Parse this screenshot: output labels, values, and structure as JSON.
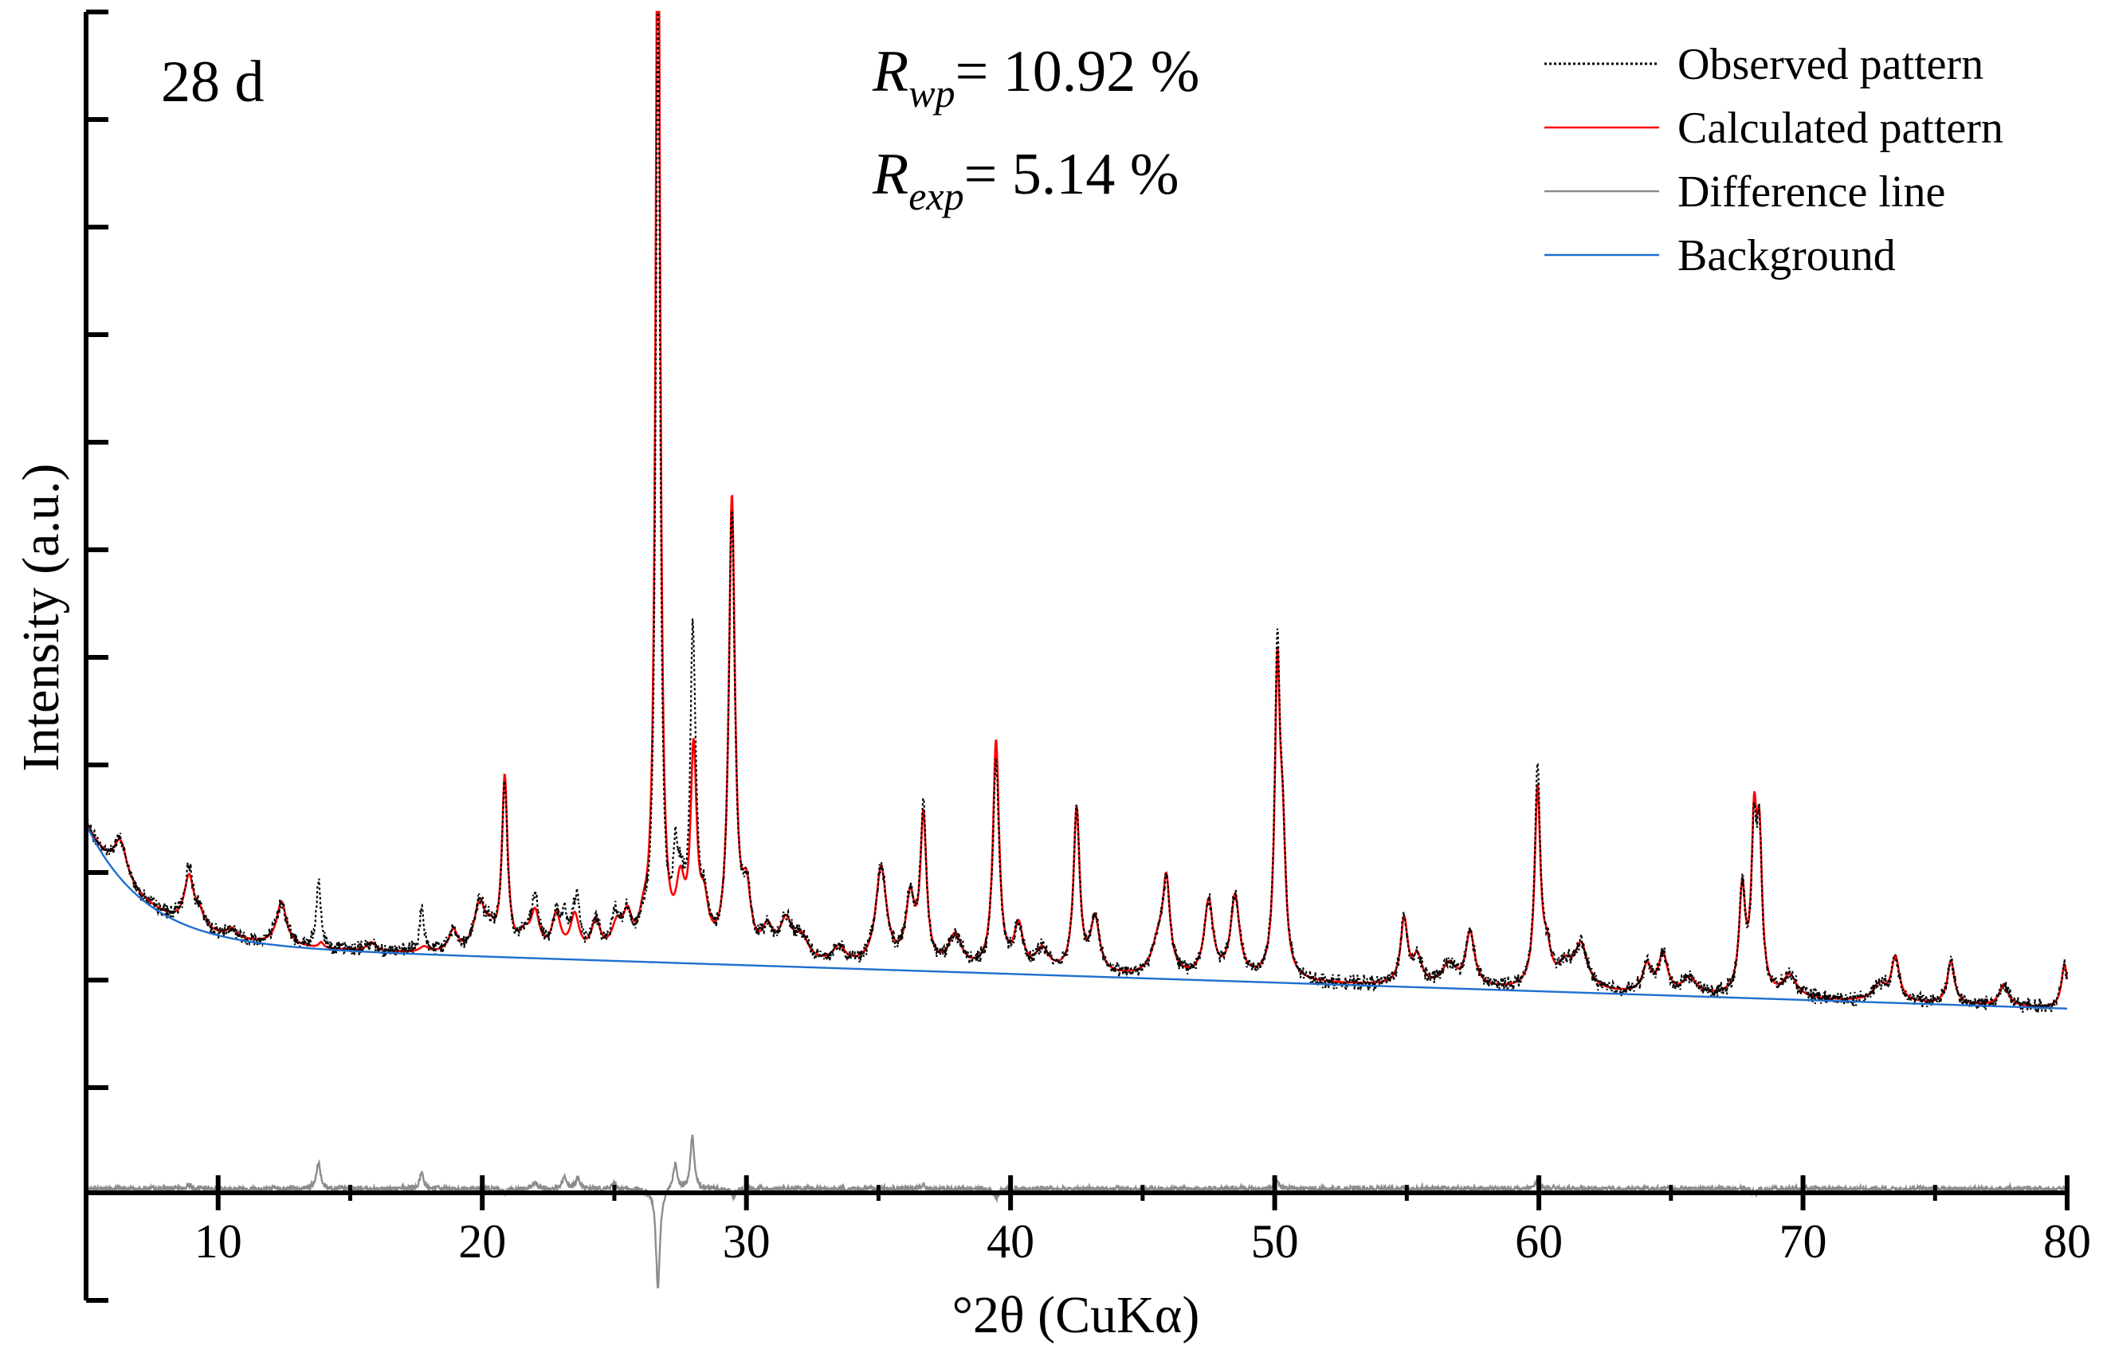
{
  "chart_data": {
    "type": "line",
    "title": "",
    "panel_label": "28 d",
    "stats": {
      "rwp": {
        "symbol": "R",
        "subscript": "wp",
        "text": "= 10.92 %"
      },
      "rexp": {
        "symbol": "R",
        "subscript": "exp",
        "text": "= 5.14 %"
      }
    },
    "xlabel": "°2θ (CuKα)",
    "ylabel": "Intensity (a.u.)",
    "xlim": [
      5,
      80
    ],
    "ylim": [
      -100,
      1000
    ],
    "x_ticks": [
      10,
      20,
      30,
      40,
      50,
      60,
      70,
      80
    ],
    "x_tick_labels": [
      "10",
      "20",
      "30",
      "40",
      "50",
      "60",
      "70",
      "80"
    ],
    "legend": [
      {
        "name": "Observed pattern",
        "color": "#000000",
        "style": "dotted"
      },
      {
        "name": "Calculated pattern",
        "color": "#ff0000",
        "style": "solid"
      },
      {
        "name": "Difference line",
        "color": "#8c8c8c",
        "style": "solid"
      },
      {
        "name": "Background",
        "color": "#1f6fd0",
        "style": "solid"
      }
    ],
    "background": {
      "a": 170,
      "b": 110,
      "k": 0.45,
      "c": 0.8
    },
    "peaks": [
      [
        6.3,
        35,
        0.3
      ],
      [
        8.9,
        45,
        0.22
      ],
      [
        9.3,
        12,
        0.2
      ],
      [
        10.5,
        8,
        0.2
      ],
      [
        12.4,
        40,
        0.22
      ],
      [
        13.9,
        5,
        0.1
      ],
      [
        15.8,
        8,
        0.2
      ],
      [
        17.8,
        5,
        0.2
      ],
      [
        18.9,
        20,
        0.2
      ],
      [
        19.9,
        45,
        0.25
      ],
      [
        20.3,
        15,
        0.2
      ],
      [
        20.85,
        160,
        0.13
      ],
      [
        21.6,
        15,
        0.25
      ],
      [
        22.0,
        35,
        0.2
      ],
      [
        22.8,
        35,
        0.2
      ],
      [
        23.5,
        35,
        0.2
      ],
      [
        24.3,
        30,
        0.2
      ],
      [
        25.1,
        25,
        0.25
      ],
      [
        25.5,
        30,
        0.2
      ],
      [
        26.1,
        20,
        0.2
      ],
      [
        26.65,
        1100,
        0.1
      ],
      [
        27.5,
        55,
        0.2
      ],
      [
        28.0,
        180,
        0.14
      ],
      [
        28.4,
        40,
        0.2
      ],
      [
        29.45,
        420,
        0.14
      ],
      [
        30.0,
        55,
        0.2
      ],
      [
        30.8,
        25,
        0.25
      ],
      [
        31.5,
        35,
        0.3
      ],
      [
        32.1,
        20,
        0.3
      ],
      [
        33.5,
        15,
        0.3
      ],
      [
        35.1,
        90,
        0.25
      ],
      [
        36.2,
        60,
        0.2
      ],
      [
        36.7,
        135,
        0.14
      ],
      [
        37.9,
        30,
        0.3
      ],
      [
        39.45,
        210,
        0.14
      ],
      [
        40.3,
        40,
        0.2
      ],
      [
        41.2,
        20,
        0.3
      ],
      [
        42.5,
        150,
        0.14
      ],
      [
        43.2,
        50,
        0.2
      ],
      [
        45.6,
        30,
        0.3
      ],
      [
        45.9,
        80,
        0.16
      ],
      [
        47.5,
        70,
        0.2
      ],
      [
        48.5,
        75,
        0.2
      ],
      [
        50.1,
        270,
        0.12
      ],
      [
        50.3,
        110,
        0.14
      ],
      [
        54.9,
        60,
        0.16
      ],
      [
        55.4,
        25,
        0.2
      ],
      [
        56.6,
        20,
        0.3
      ],
      [
        57.4,
        50,
        0.2
      ],
      [
        59.95,
        180,
        0.13
      ],
      [
        60.3,
        30,
        0.2
      ],
      [
        61.0,
        20,
        0.3
      ],
      [
        61.6,
        40,
        0.3
      ],
      [
        64.1,
        25,
        0.2
      ],
      [
        64.7,
        35,
        0.2
      ],
      [
        65.7,
        15,
        0.3
      ],
      [
        67.7,
        95,
        0.14
      ],
      [
        68.15,
        145,
        0.12
      ],
      [
        68.35,
        130,
        0.12
      ],
      [
        69.5,
        20,
        0.3
      ],
      [
        72.9,
        15,
        0.3
      ],
      [
        73.5,
        40,
        0.18
      ],
      [
        75.6,
        40,
        0.16
      ],
      [
        77.6,
        20,
        0.2
      ],
      [
        79.9,
        40,
        0.14
      ]
    ],
    "observed_extra": [
      [
        8.9,
        10
      ],
      [
        13.8,
        60
      ],
      [
        17.7,
        35
      ],
      [
        20.85,
        -10
      ],
      [
        22.0,
        15
      ],
      [
        23.1,
        25
      ],
      [
        23.6,
        25
      ],
      [
        25.0,
        15
      ],
      [
        26.65,
        -230
      ],
      [
        27.3,
        60
      ],
      [
        27.95,
        120
      ],
      [
        29.5,
        -20
      ],
      [
        36.7,
        10
      ],
      [
        39.45,
        -20
      ],
      [
        50.1,
        20
      ],
      [
        59.95,
        20
      ],
      [
        68.2,
        -10
      ]
    ]
  }
}
